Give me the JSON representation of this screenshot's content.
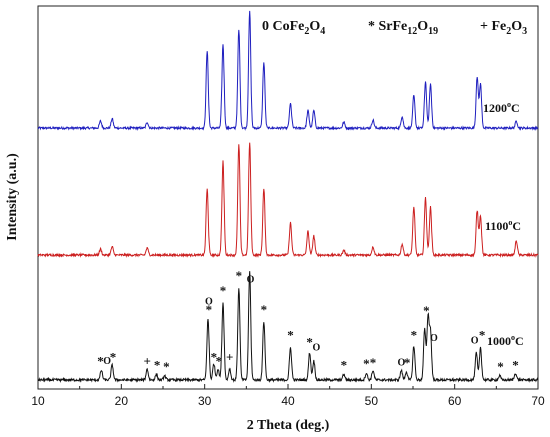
{
  "chart_data": {
    "type": "line",
    "title": "",
    "xlabel": "2 Theta (deg.)",
    "ylabel": "Intensity (a.u.)",
    "xlim": [
      10,
      70
    ],
    "xticks": [
      10,
      20,
      30,
      40,
      50,
      60,
      70
    ],
    "yticks_shown": false,
    "grid": false,
    "legend": {
      "placement": "top",
      "entries": [
        {
          "symbol": "0",
          "phase": "CoFe",
          "sub1": "2",
          "mid": "O",
          "sub2": "4"
        },
        {
          "symbol": "*",
          "phase": "SrFe",
          "sub1": "12",
          "mid": "O",
          "sub2": "19"
        },
        {
          "symbol": "+",
          "phase": "Fe",
          "sub1": "2",
          "mid": "O",
          "sub2": "3"
        }
      ]
    },
    "series": [
      {
        "name": "1200°C",
        "label_main": "1200",
        "label_sup": "o",
        "label_end": "C",
        "color": "#1f1fbf",
        "peaks": [
          [
            17.5,
            0.06
          ],
          [
            18.9,
            0.08
          ],
          [
            23.1,
            0.05
          ],
          [
            30.3,
            0.66
          ],
          [
            32.2,
            0.72
          ],
          [
            34.1,
            0.84
          ],
          [
            35.4,
            1.0
          ],
          [
            37.1,
            0.56
          ],
          [
            40.3,
            0.21
          ],
          [
            42.4,
            0.15
          ],
          [
            43.1,
            0.15
          ],
          [
            46.7,
            0.05
          ],
          [
            50.2,
            0.07
          ],
          [
            53.7,
            0.1
          ],
          [
            55.1,
            0.28
          ],
          [
            56.5,
            0.4
          ],
          [
            57.1,
            0.38
          ],
          [
            62.7,
            0.44
          ],
          [
            63.1,
            0.38
          ],
          [
            67.4,
            0.06
          ]
        ]
      },
      {
        "name": "1100°C",
        "label_main": "1100",
        "label_sup": "o",
        "label_end": "C",
        "color": "#cc2020",
        "peaks": [
          [
            17.5,
            0.05
          ],
          [
            18.9,
            0.07
          ],
          [
            23.1,
            0.06
          ],
          [
            30.3,
            0.55
          ],
          [
            32.2,
            0.78
          ],
          [
            34.1,
            0.92
          ],
          [
            35.4,
            0.94
          ],
          [
            37.1,
            0.55
          ],
          [
            40.3,
            0.27
          ],
          [
            42.4,
            0.2
          ],
          [
            43.1,
            0.16
          ],
          [
            46.7,
            0.04
          ],
          [
            50.2,
            0.07
          ],
          [
            53.7,
            0.09
          ],
          [
            55.1,
            0.4
          ],
          [
            56.5,
            0.48
          ],
          [
            57.1,
            0.4
          ],
          [
            62.7,
            0.37
          ],
          [
            63.1,
            0.33
          ],
          [
            67.4,
            0.12
          ]
        ]
      },
      {
        "name": "1000°C",
        "label_main": "1000",
        "label_sup": "o",
        "label_end": "C",
        "color": "#111111",
        "peaks": [
          [
            17.6,
            0.07
          ],
          [
            18.9,
            0.11
          ],
          [
            23.1,
            0.08
          ],
          [
            24.2,
            0.04
          ],
          [
            25.2,
            0.03
          ],
          [
            30.4,
            0.45
          ],
          [
            31.1,
            0.12
          ],
          [
            31.6,
            0.08
          ],
          [
            32.2,
            0.57
          ],
          [
            33.0,
            0.08
          ],
          [
            34.1,
            0.67
          ],
          [
            35.4,
            0.8
          ],
          [
            37.1,
            0.43
          ],
          [
            40.3,
            0.24
          ],
          [
            42.6,
            0.2
          ],
          [
            43.1,
            0.14
          ],
          [
            46.7,
            0.04
          ],
          [
            49.4,
            0.05
          ],
          [
            50.2,
            0.07
          ],
          [
            53.6,
            0.07
          ],
          [
            54.2,
            0.06
          ],
          [
            55.1,
            0.25
          ],
          [
            56.4,
            0.37
          ],
          [
            56.8,
            0.46
          ],
          [
            57.1,
            0.35
          ],
          [
            62.6,
            0.2
          ],
          [
            63.1,
            0.24
          ],
          [
            65.4,
            0.03
          ],
          [
            67.3,
            0.05
          ]
        ],
        "annotations": [
          {
            "text": "*",
            "x": 17.5,
            "level": 0.07
          },
          {
            "text": "O",
            "x": 18.3,
            "level": 0.08
          },
          {
            "text": "*",
            "x": 19.0,
            "level": 0.1
          },
          {
            "text": "+",
            "x": 23.1,
            "level": 0.07
          },
          {
            "text": "*",
            "x": 24.3,
            "level": 0.04
          },
          {
            "text": "*",
            "x": 25.4,
            "level": 0.03
          },
          {
            "text": "*",
            "x": 30.5,
            "level": 0.45
          },
          {
            "text": "O",
            "x": 30.5,
            "level": 0.52
          },
          {
            "text": "*",
            "x": 31.1,
            "level": 0.1
          },
          {
            "text": "*",
            "x": 31.7,
            "level": 0.07
          },
          {
            "text": "+",
            "x": 33.0,
            "level": 0.1
          },
          {
            "text": "*",
            "x": 32.2,
            "level": 0.59
          },
          {
            "text": "*",
            "x": 34.1,
            "level": 0.7
          },
          {
            "text": "O",
            "x": 35.5,
            "level": 0.68
          },
          {
            "text": "*",
            "x": 37.1,
            "level": 0.45
          },
          {
            "text": "*",
            "x": 40.3,
            "level": 0.26
          },
          {
            "text": "*",
            "x": 42.6,
            "level": 0.21
          },
          {
            "text": "O",
            "x": 43.4,
            "level": 0.18
          },
          {
            "text": "*",
            "x": 46.7,
            "level": 0.04
          },
          {
            "text": "*",
            "x": 49.4,
            "level": 0.05
          },
          {
            "text": "*",
            "x": 50.2,
            "level": 0.06
          },
          {
            "text": "O",
            "x": 53.6,
            "level": 0.07
          },
          {
            "text": "*",
            "x": 54.3,
            "level": 0.06
          },
          {
            "text": "*",
            "x": 55.1,
            "level": 0.26
          },
          {
            "text": "*",
            "x": 56.6,
            "level": 0.44
          },
          {
            "text": "O",
            "x": 57.5,
            "level": 0.25
          },
          {
            "text": "O",
            "x": 62.4,
            "level": 0.23
          },
          {
            "text": "*",
            "x": 63.3,
            "level": 0.26
          },
          {
            "text": "*",
            "x": 65.5,
            "level": 0.03
          },
          {
            "text": "*",
            "x": 67.3,
            "level": 0.04
          }
        ]
      }
    ]
  }
}
